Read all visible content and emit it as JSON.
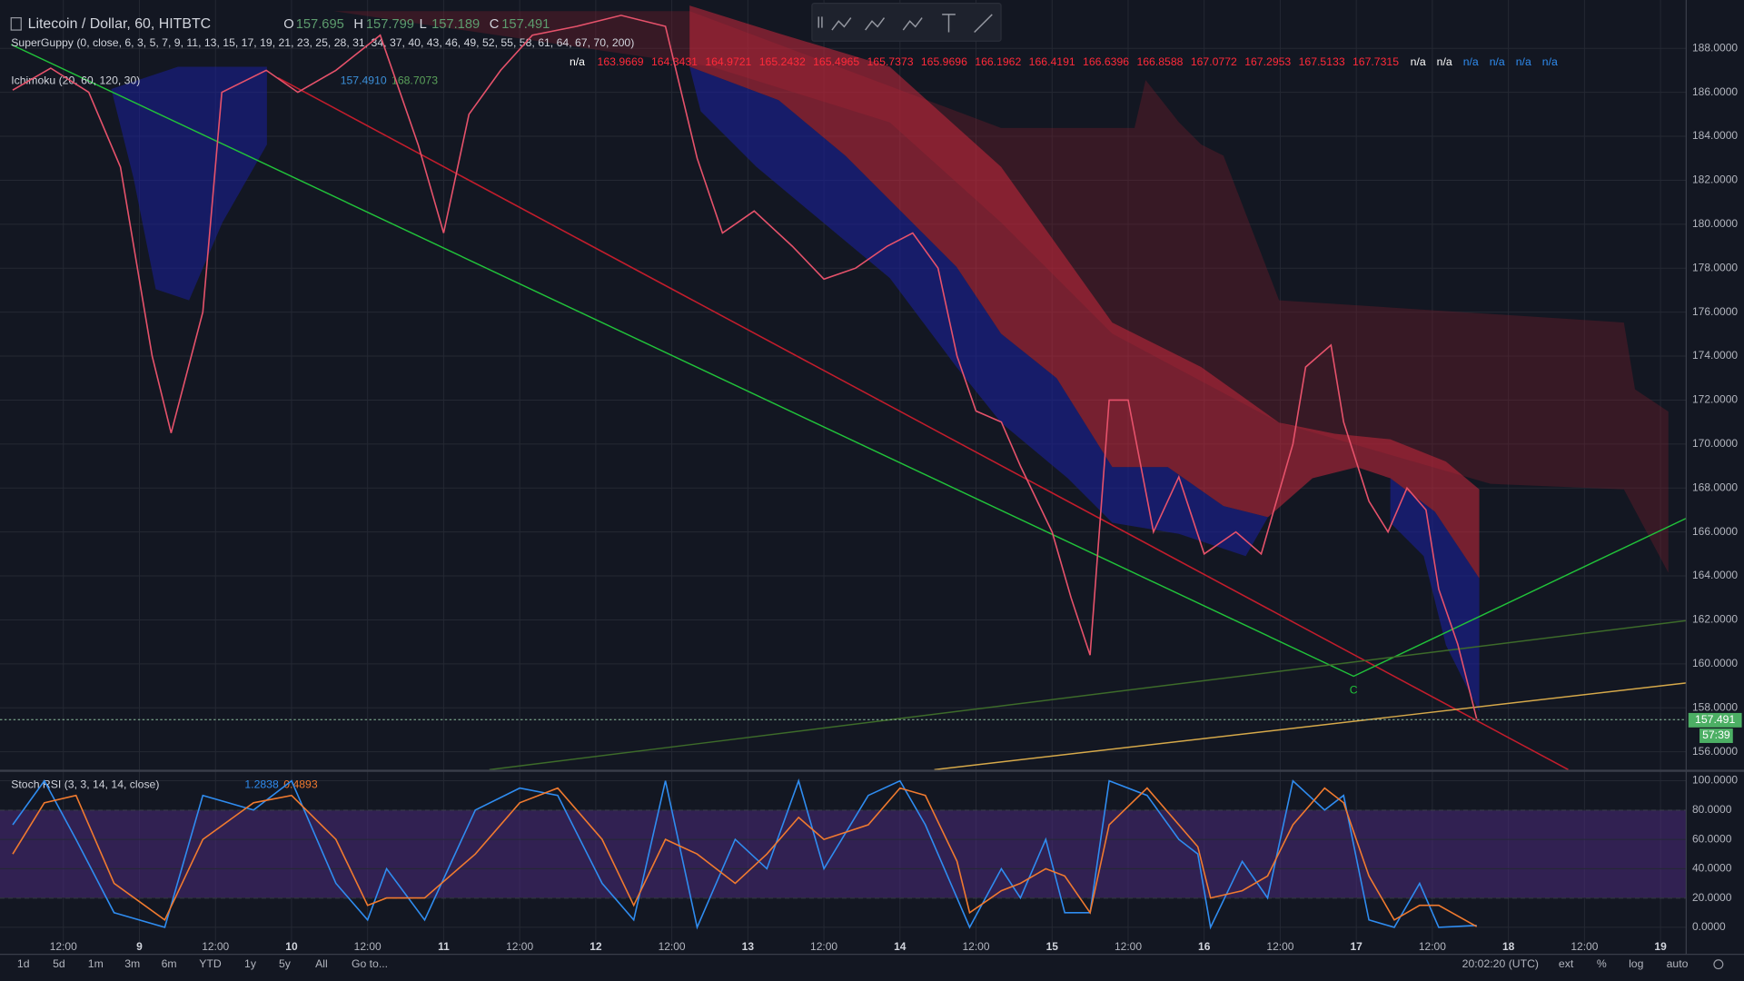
{
  "header": {
    "title": "Litecoin / Dollar, 60, HITBTC",
    "ohlc": [
      {
        "key": "O",
        "value": "157.695"
      },
      {
        "key": "H",
        "value": "157.799"
      },
      {
        "key": "L",
        "value": "157.189"
      },
      {
        "key": "C",
        "value": "157.491"
      }
    ],
    "price_tag": "157.491",
    "countdown": "57:39",
    "pattern_label": "C"
  },
  "indicators": {
    "superguppy": {
      "label": "SuperGuppy (0, close, 6, 3, 5, 7, 9, 11, 13, 15, 17, 19, 21, 23, 25, 28, 31, 34, 37, 40, 43, 46, 49, 52, 55, 58, 61, 64, 67, 70, 200)",
      "values": [
        "n/a",
        "163.9669",
        "164.3431",
        "164.9721",
        "165.2432",
        "165.4965",
        "165.7373",
        "165.9696",
        "166.1962",
        "166.4191",
        "166.6396",
        "166.8588",
        "167.0772",
        "167.2953",
        "167.5133",
        "167.7315",
        "n/a",
        "n/a",
        "n/a",
        "n/a",
        "n/a",
        "n/a"
      ]
    },
    "ichimoku": {
      "label": "Ichimoku (20, 60, 120, 30)",
      "values": [
        "157.4910",
        "168.7073"
      ]
    }
  },
  "chart_data": [
    {
      "type": "line",
      "color": "#e6526b",
      "x": [
        4,
        10,
        16,
        21,
        26,
        29,
        34,
        37,
        44,
        49,
        55,
        62,
        68,
        72,
        76,
        81,
        86,
        93,
        100,
        107,
        112,
        116,
        121,
        127,
        132,
        137,
        142,
        146,
        150,
        153,
        156,
        160,
        163,
        168,
        171,
        174,
        177,
        180,
        184,
        188,
        192,
        197,
        201,
        206,
        208,
        212,
        214,
        218,
        221,
        224,
        227,
        229,
        232,
        235
      ],
      "values": [
        186.1,
        187.1,
        186,
        182.6,
        174,
        170.5,
        176,
        186,
        187,
        186,
        187,
        188.6,
        183.6,
        179.6,
        185,
        187,
        188.6,
        189,
        189.5,
        189,
        183,
        179.6,
        180.6,
        179,
        177.5,
        178,
        179,
        179.6,
        178,
        174,
        171.5,
        171,
        169,
        166,
        163,
        160.4,
        172,
        172,
        166,
        168.5,
        165,
        166,
        165,
        170,
        173.5,
        174.5,
        171,
        167.4,
        166,
        168,
        167,
        163.4,
        160.9,
        157.5
      ],
      "xlim": [
        2,
        268
      ],
      "xticks": [
        {
          "value": 12,
          "label": "12:00"
        },
        {
          "value": 24,
          "label": "9"
        },
        {
          "value": 36,
          "label": "12:00"
        },
        {
          "value": 48,
          "label": "10"
        },
        {
          "value": 60,
          "label": "12:00"
        },
        {
          "value": 72,
          "label": "11"
        },
        {
          "value": 84,
          "label": "12:00"
        },
        {
          "value": 96,
          "label": "12"
        },
        {
          "value": 108,
          "label": "12:00"
        },
        {
          "value": 120,
          "label": "13"
        },
        {
          "value": 132,
          "label": "12:00"
        },
        {
          "value": 144,
          "label": "14"
        },
        {
          "value": 156,
          "label": "12:00"
        },
        {
          "value": 168,
          "label": "15"
        },
        {
          "value": 180,
          "label": "12:00"
        },
        {
          "value": 192,
          "label": "16"
        },
        {
          "value": 204,
          "label": "12:00"
        },
        {
          "value": 216,
          "label": "17"
        },
        {
          "value": 228,
          "label": "12:00"
        },
        {
          "value": 240,
          "label": "18"
        },
        {
          "value": 252,
          "label": "12:00"
        },
        {
          "value": 264,
          "label": "19"
        }
      ],
      "ylim": [
        155.2,
        190.2
      ],
      "yticks": [
        {
          "value": 156,
          "label": "156.0000"
        },
        {
          "value": 158,
          "label": "158.0000"
        },
        {
          "value": 160,
          "label": "160.0000"
        },
        {
          "value": 162,
          "label": "162.0000"
        },
        {
          "value": 164,
          "label": "164.0000"
        },
        {
          "value": 166,
          "label": "166.0000"
        },
        {
          "value": 168,
          "label": "168.0000"
        },
        {
          "value": 170,
          "label": "170.0000"
        },
        {
          "value": 172,
          "label": "172.0000"
        },
        {
          "value": 174,
          "label": "174.0000"
        },
        {
          "value": 176,
          "label": "176.0000"
        },
        {
          "value": 178,
          "label": "178.0000"
        },
        {
          "value": 180,
          "label": "180.0000"
        },
        {
          "value": 182,
          "label": "182.0000"
        },
        {
          "value": 184,
          "label": "184.0000"
        },
        {
          "value": 186,
          "label": "186.0000"
        },
        {
          "value": 188,
          "label": "188.0000"
        }
      ],
      "grid": true
    },
    {
      "type": "line",
      "title": "Stoch RSI (3, 3, 14, 14, close)",
      "current_values": [
        "1.2838",
        "0.4893"
      ],
      "x": [
        4,
        9,
        14,
        20,
        28,
        34,
        42,
        48,
        55,
        60,
        63,
        69,
        77,
        84,
        90,
        97,
        102,
        107,
        112,
        118,
        123,
        128,
        132,
        139,
        144,
        148,
        153,
        155,
        160,
        163,
        167,
        170,
        174,
        177,
        183,
        188,
        191,
        193,
        198,
        202,
        206,
        211,
        214,
        218,
        222,
        226,
        229,
        235
      ],
      "series": [
        {
          "color": "#2f8cf0",
          "values": [
            70,
            100,
            60,
            10,
            0,
            90,
            80,
            100,
            30,
            5,
            40,
            5,
            80,
            95,
            90,
            30,
            5,
            100,
            0,
            60,
            40,
            100,
            40,
            90,
            100,
            70,
            20,
            0,
            40,
            20,
            60,
            10,
            10,
            100,
            90,
            60,
            50,
            0,
            45,
            20,
            100,
            80,
            90,
            5,
            0,
            30,
            0,
            1.3
          ]
        },
        {
          "color": "#f07a2f",
          "values": [
            50,
            85,
            90,
            30,
            5,
            60,
            85,
            90,
            60,
            15,
            20,
            20,
            50,
            85,
            95,
            60,
            15,
            60,
            50,
            30,
            50,
            75,
            60,
            70,
            95,
            90,
            45,
            10,
            25,
            30,
            40,
            35,
            10,
            70,
            95,
            70,
            55,
            20,
            25,
            35,
            70,
            95,
            85,
            35,
            5,
            15,
            15,
            0.5
          ]
        }
      ],
      "xlim": [
        2,
        268
      ],
      "ylim": [
        -10.6,
        105.3
      ],
      "yticks": [
        {
          "value": 0,
          "label": "0.0000"
        },
        {
          "value": 20,
          "label": "20.0000"
        },
        {
          "value": 40,
          "label": "40.0000"
        },
        {
          "value": 60,
          "label": "60.0000"
        },
        {
          "value": 80,
          "label": "80.0000"
        },
        {
          "value": 100,
          "label": "100.0000"
        }
      ],
      "band": [
        20,
        80
      ],
      "band_color": "#4b2a7a",
      "grid": true
    }
  ],
  "bottom_bar": {
    "ranges": [
      "1d",
      "5d",
      "1m",
      "3m",
      "6m",
      "YTD",
      "1y",
      "5y",
      "All"
    ],
    "goto": "Go to...",
    "clock": "20:02:20 (UTC)",
    "options": [
      "ext",
      "%",
      "log",
      "auto"
    ]
  }
}
